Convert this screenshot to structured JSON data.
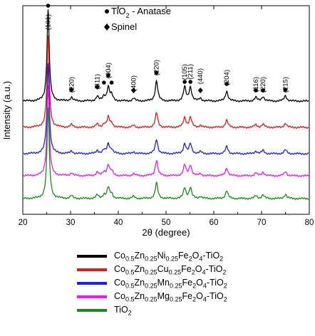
{
  "chart_data": {
    "type": "line",
    "xlabel": "2θ (degree)",
    "ylabel": "Intensity (a.u.)",
    "xlim": [
      20,
      80
    ],
    "x_ticks": [
      20,
      30,
      40,
      50,
      60,
      70,
      80
    ],
    "x_tick_labels": [
      "20",
      "30",
      "40",
      "50",
      "60",
      "70",
      "80"
    ],
    "grid": false,
    "marker_legend": [
      {
        "symbol": "circle",
        "label": "TiO",
        "sub": "2",
        "suffix": " - Anatase"
      },
      {
        "symbol": "diamond",
        "label": "Spinel",
        "sub": "",
        "suffix": ""
      }
    ],
    "peak_annotations": [
      {
        "x": 25.3,
        "label": "(101)",
        "marker": "circle"
      },
      {
        "x": 30.2,
        "label": "(220)",
        "marker": "diamond"
      },
      {
        "x": 35.6,
        "label": "(311)",
        "marker": "diamond"
      },
      {
        "x": 37.0,
        "label": "",
        "marker": "circle"
      },
      {
        "x": 37.9,
        "label": "(004)",
        "marker": "circle"
      },
      {
        "x": 38.6,
        "label": "",
        "marker": "circle"
      },
      {
        "x": 43.2,
        "label": "(400)",
        "marker": "diamond"
      },
      {
        "x": 48.0,
        "label": "(220)",
        "marker": "circle"
      },
      {
        "x": 53.9,
        "label": "(105)",
        "marker": "circle"
      },
      {
        "x": 55.1,
        "label": "(211)",
        "marker": "circle"
      },
      {
        "x": 57.2,
        "label": "(440)",
        "marker": "diamond"
      },
      {
        "x": 62.7,
        "label": "(204)",
        "marker": "circle"
      },
      {
        "x": 68.8,
        "label": "(116)",
        "marker": "circle"
      },
      {
        "x": 70.3,
        "label": "(220)",
        "marker": "circle"
      },
      {
        "x": 75.0,
        "label": "(215)",
        "marker": "circle"
      }
    ],
    "peaks": [
      {
        "x": 25.3,
        "relative_height": 1.0
      },
      {
        "x": 30.2,
        "relative_height": 0.04
      },
      {
        "x": 35.6,
        "relative_height": 0.05
      },
      {
        "x": 37.0,
        "relative_height": 0.05
      },
      {
        "x": 37.9,
        "relative_height": 0.15
      },
      {
        "x": 38.6,
        "relative_height": 0.06
      },
      {
        "x": 43.2,
        "relative_height": 0.03
      },
      {
        "x": 48.0,
        "relative_height": 0.22
      },
      {
        "x": 53.9,
        "relative_height": 0.15
      },
      {
        "x": 55.1,
        "relative_height": 0.15
      },
      {
        "x": 57.2,
        "relative_height": 0.03
      },
      {
        "x": 62.7,
        "relative_height": 0.11
      },
      {
        "x": 68.8,
        "relative_height": 0.04
      },
      {
        "x": 70.3,
        "relative_height": 0.05
      },
      {
        "x": 75.0,
        "relative_height": 0.06
      }
    ],
    "series": [
      {
        "color": "#000000",
        "legend": {
          "parts": [
            [
              "Co",
              "",
              ""
            ],
            [
              "0.5",
              "sub"
            ],
            [
              "Zn",
              ""
            ],
            [
              "0.25",
              "sub"
            ],
            [
              "Ni",
              ""
            ],
            [
              "0.25",
              "sub"
            ],
            [
              "Fe",
              ""
            ],
            [
              "2",
              "sub"
            ],
            [
              "O",
              ""
            ],
            [
              "4",
              "sub"
            ],
            [
              "-TiO",
              ""
            ],
            [
              "2",
              "sub"
            ]
          ]
        }
      },
      {
        "color": "#e41a1a",
        "legend": {
          "parts": [
            [
              "Co",
              ""
            ],
            [
              "0.5",
              "sub"
            ],
            [
              "Zn",
              ""
            ],
            [
              "0.25",
              "sub"
            ],
            [
              "Cu",
              ""
            ],
            [
              "0.25",
              "sub"
            ],
            [
              "Fe",
              ""
            ],
            [
              "2",
              "sub"
            ],
            [
              "O",
              ""
            ],
            [
              "4",
              "sub"
            ],
            [
              "-TiO",
              ""
            ],
            [
              "2",
              "sub"
            ]
          ]
        }
      },
      {
        "color": "#1f1fdc",
        "legend": {
          "parts": [
            [
              "Co",
              ""
            ],
            [
              "0.5",
              "sub"
            ],
            [
              "Zn",
              ""
            ],
            [
              "0.25",
              "sub"
            ],
            [
              "Mn",
              ""
            ],
            [
              "0.25",
              "sub"
            ],
            [
              "Fe",
              ""
            ],
            [
              "2",
              "sub"
            ],
            [
              "O",
              ""
            ],
            [
              "4",
              "sub"
            ],
            [
              "-TiO",
              ""
            ],
            [
              "2",
              "sub"
            ]
          ]
        }
      },
      {
        "color": "#e61ee6",
        "legend": {
          "parts": [
            [
              "Co",
              ""
            ],
            [
              "0.5",
              "sub"
            ],
            [
              "Zn",
              ""
            ],
            [
              "0.25",
              "sub"
            ],
            [
              "Mg",
              ""
            ],
            [
              "0.25",
              "sub"
            ],
            [
              "Fe",
              ""
            ],
            [
              "2",
              "sub"
            ],
            [
              "O",
              ""
            ],
            [
              "4",
              "sub"
            ],
            [
              "-TiO",
              ""
            ],
            [
              "2",
              "sub"
            ]
          ]
        }
      },
      {
        "color": "#1a8a1a",
        "legend": {
          "parts": [
            [
              "TiO",
              ""
            ],
            [
              "2",
              "sub"
            ]
          ]
        }
      }
    ]
  }
}
